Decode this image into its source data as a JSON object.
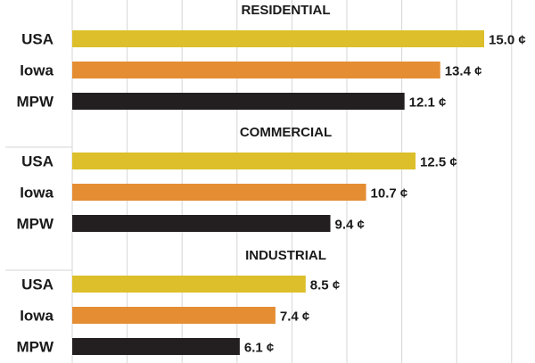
{
  "chart_data": {
    "type": "bar",
    "orientation": "horizontal",
    "unit": "¢",
    "xlim": [
      0,
      16
    ],
    "grid": true,
    "categories": [
      "USA",
      "Iowa",
      "MPW"
    ],
    "colors": {
      "USA": "#dcbf2a",
      "Iowa": "#e48d33",
      "MPW": "#231f20"
    },
    "groups": [
      {
        "title": "RESIDENTIAL",
        "values": [
          15.0,
          13.4,
          12.1
        ],
        "labels": [
          "15.0 ¢",
          "13.4 ¢",
          "12.1 ¢"
        ]
      },
      {
        "title": "COMMERCIAL",
        "values": [
          12.5,
          10.7,
          9.4
        ],
        "labels": [
          "12.5 ¢",
          "10.7 ¢",
          "9.4 ¢"
        ]
      },
      {
        "title": "INDUSTRIAL",
        "values": [
          8.5,
          7.4,
          6.1
        ],
        "labels": [
          "8.5 ¢",
          "7.4 ¢",
          "6.1 ¢"
        ]
      }
    ]
  }
}
